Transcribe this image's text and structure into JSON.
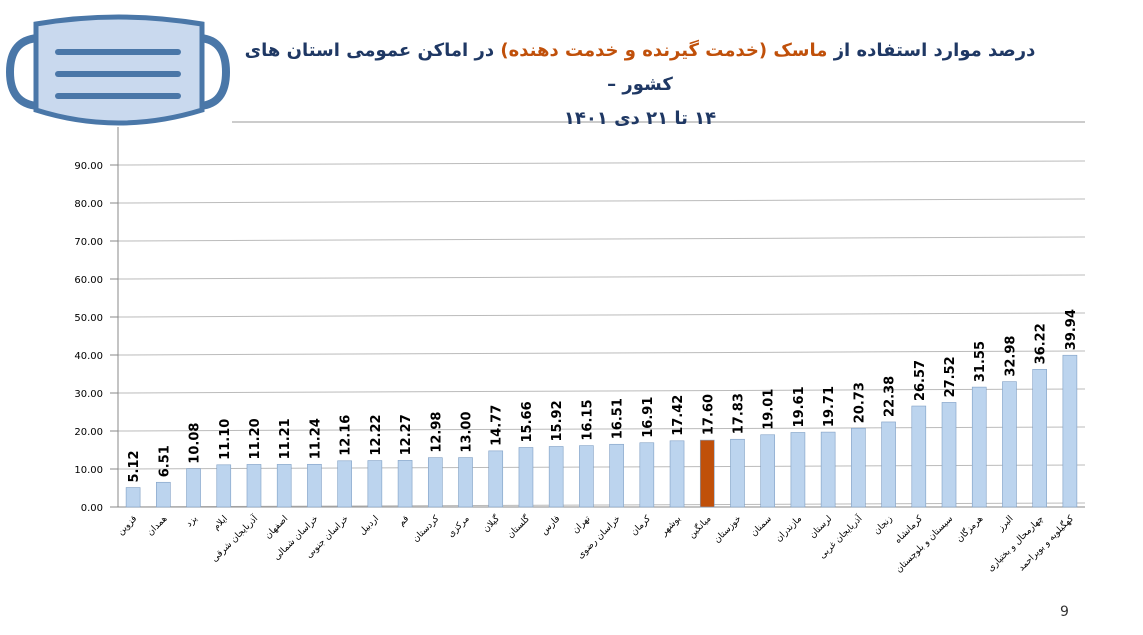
{
  "chart_data": {
    "type": "bar",
    "title": [
      "درصد موارد استفاده از",
      "ماسک (خدمت گیرنده و خدمت دهنده)",
      "در اماکن عمومی استان های کشور –",
      "۱۴ تا ۲۱ دی ۱۴۰۱"
    ],
    "categories": [
      "قزوین",
      "همدان",
      "یزد",
      "ایلام",
      "آذربایجان شرقی",
      "اصفهان",
      "خراسان شمالی",
      "خراسان جنوبی",
      "اردبیل",
      "قم",
      "کردستان",
      "مرکزی",
      "گیلان",
      "گلستان",
      "فارس",
      "تهران",
      "خراسان رضوی",
      "کرمان",
      "بوشهر",
      "میانگین",
      "خوزستان",
      "سمنان",
      "مازندران",
      "لرستان",
      "آذربایجان غربی",
      "زنجان",
      "کرمانشاه",
      "سیستان و بلوچستان",
      "هرمزگان",
      "البرز",
      "چهارمحال و بختیاری",
      "کهگیلویه و بویراحمد"
    ],
    "values": [
      5.12,
      6.51,
      10.08,
      11.1,
      11.2,
      11.21,
      11.24,
      12.16,
      12.22,
      12.27,
      12.98,
      13.0,
      14.77,
      15.66,
      15.92,
      16.15,
      16.51,
      16.91,
      17.42,
      17.6,
      17.83,
      19.01,
      19.61,
      19.71,
      20.73,
      22.38,
      26.57,
      27.52,
      31.55,
      32.98,
      36.22,
      39.94
    ],
    "value_labels": [
      "5.12",
      "6.51",
      "10.08",
      "11.10",
      "11.20",
      "11.21",
      "11.24",
      "12.16",
      "12.22",
      "12.27",
      "12.98",
      "13.00",
      "14.77",
      "15.66",
      "15.92",
      "16.15",
      "16.51",
      "16.91",
      "17.42",
      "17.60",
      "17.83",
      "19.01",
      "19.61",
      "19.71",
      "20.73",
      "22.38",
      "26.57",
      "27.52",
      "31.55",
      "32.98",
      "36.22",
      "39.94"
    ],
    "colors": [
      "#bcd4ee",
      "#bcd4ee",
      "#bcd4ee",
      "#bcd4ee",
      "#bcd4ee",
      "#bcd4ee",
      "#bcd4ee",
      "#bcd4ee",
      "#bcd4ee",
      "#bcd4ee",
      "#bcd4ee",
      "#bcd4ee",
      "#bcd4ee",
      "#bcd4ee",
      "#bcd4ee",
      "#bcd4ee",
      "#bcd4ee",
      "#bcd4ee",
      "#bcd4ee",
      "#c0500a",
      "#bcd4ee",
      "#bcd4ee",
      "#bcd4ee",
      "#bcd4ee",
      "#bcd4ee",
      "#bcd4ee",
      "#bcd4ee",
      "#bcd4ee",
      "#bcd4ee",
      "#bcd4ee",
      "#bcd4ee",
      "#bcd4ee"
    ],
    "ylim": [
      0,
      100
    ],
    "yticks": [
      {
        "value": 0,
        "label": "0.00"
      },
      {
        "value": 10,
        "label": "10.00"
      },
      {
        "value": 20,
        "label": "20.00"
      },
      {
        "value": 30,
        "label": "30.00"
      },
      {
        "value": 40,
        "label": "40.00"
      },
      {
        "value": 50,
        "label": "50.00"
      },
      {
        "value": 60,
        "label": "60.00"
      },
      {
        "value": 70,
        "label": "70.00"
      },
      {
        "value": 80,
        "label": "80.00"
      },
      {
        "value": 90,
        "label": "90.00"
      }
    ],
    "grid": true
  },
  "page_number": 9
}
